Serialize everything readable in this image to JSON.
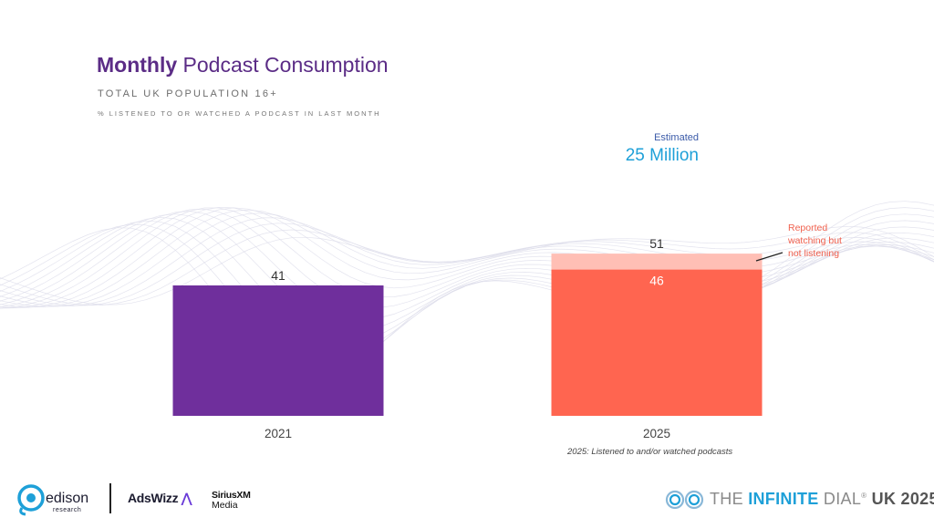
{
  "header": {
    "title_bold": "Monthly",
    "title_rest": " Podcast Consumption",
    "subtitle": "TOTAL UK POPULATION 16+",
    "subtitle2": "% LISTENED TO OR WATCHED A PODCAST IN LAST MONTH"
  },
  "estimate": {
    "label": "Estimated",
    "value": "25 Million"
  },
  "annotation": {
    "lines": [
      "Reported",
      "watching but",
      "not listening"
    ]
  },
  "footnote": "2025: Listened to and/or watched podcasts",
  "chart_data": {
    "type": "bar",
    "stacked": true,
    "categories": [
      "2021",
      "2025"
    ],
    "ylim": [
      0,
      55
    ],
    "bars": [
      {
        "category": "2021",
        "segments": [
          {
            "value": 41,
            "color": "#6f2f9c"
          }
        ],
        "label": "41"
      },
      {
        "category": "2025",
        "segments": [
          {
            "value": 46,
            "color": "#ff6550",
            "label": "46"
          },
          {
            "value": 5,
            "color": "#ffbfb5"
          }
        ],
        "label": "51"
      }
    ]
  },
  "logos": {
    "edison": "edison",
    "edison_sub": "research",
    "adswizz": "AdsWizz",
    "sirius_line1": "SiriusXM",
    "sirius_line2": "Media",
    "dial_the": "THE ",
    "dial_infinite": "INFINITE",
    "dial_dial": " DIAL",
    "dial_reg": "®",
    "dial_uk": " UK 2025"
  },
  "colors": {
    "purple": "#6f2f9c",
    "coral": "#ff6550",
    "coral_light": "#ffbfb5",
    "blue": "#1ea0d8"
  }
}
